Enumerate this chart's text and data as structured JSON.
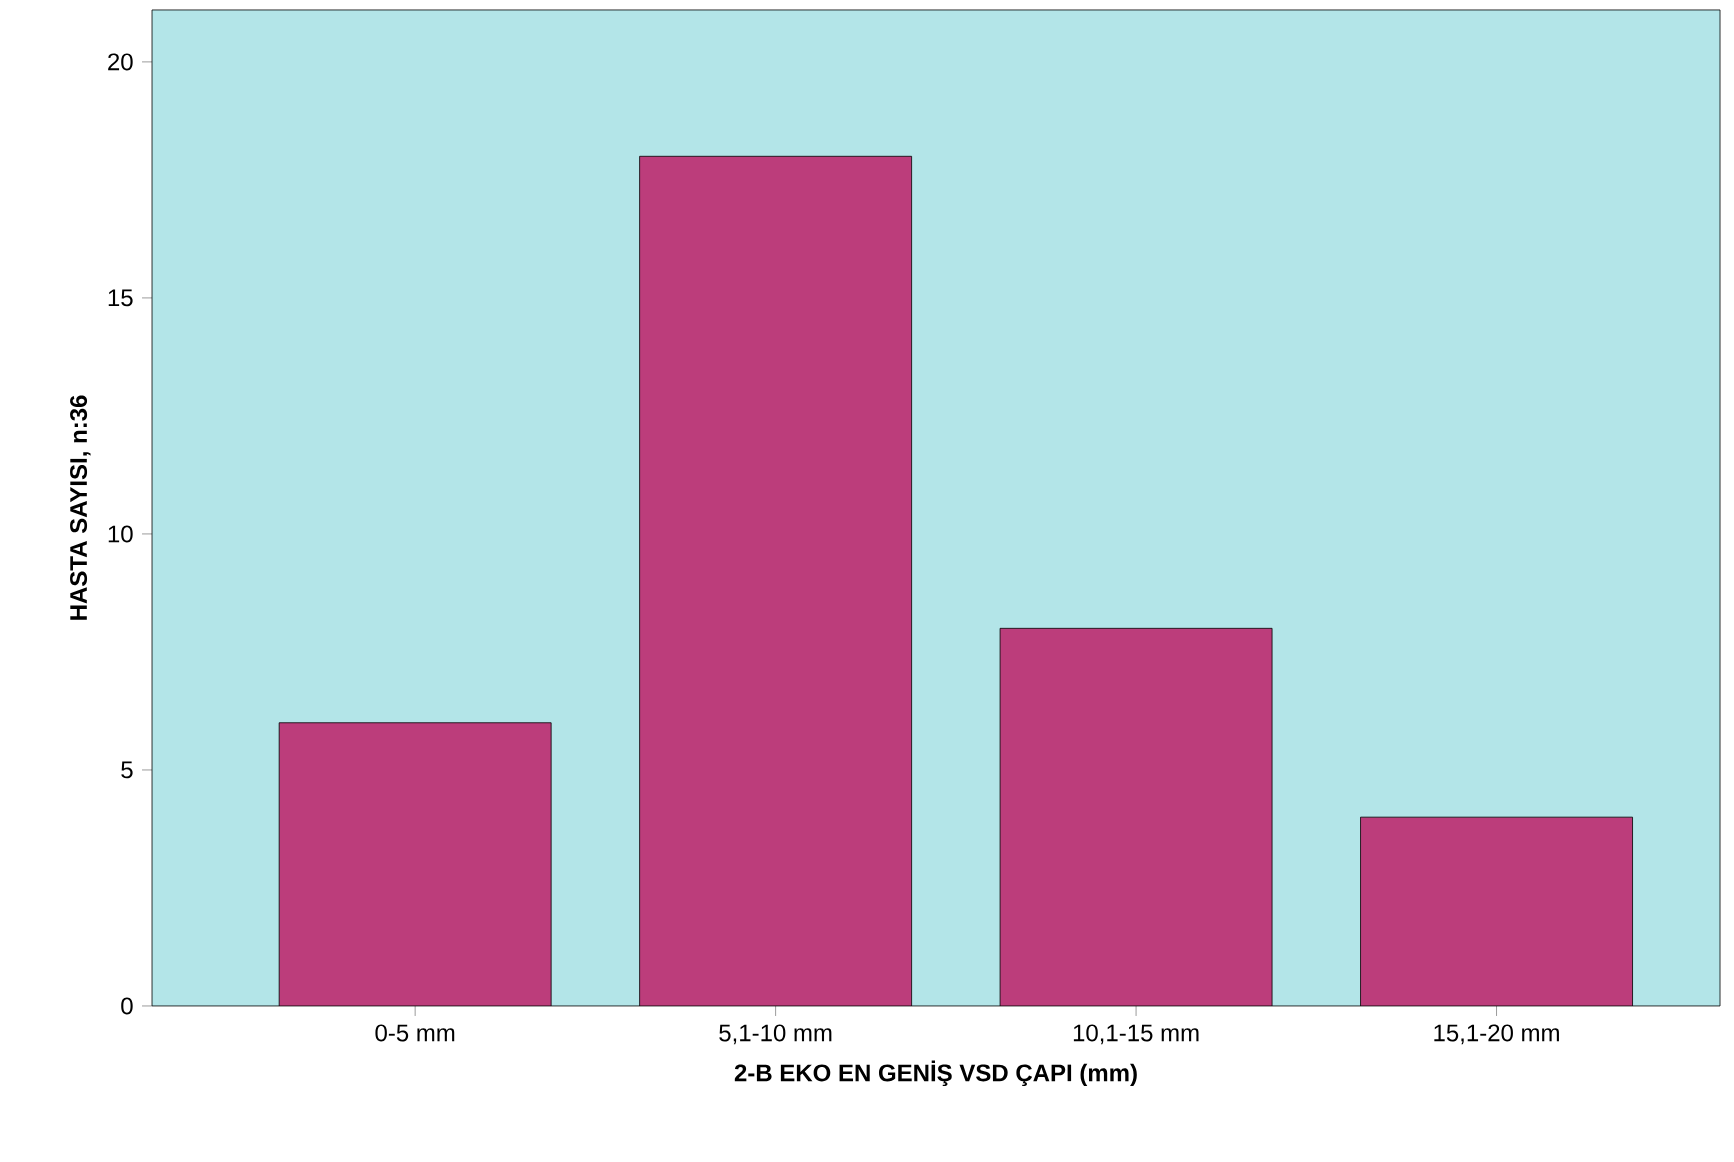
{
  "chart_data": {
    "type": "bar",
    "xlabel": "2-B EKO EN GENİŞ VSD ÇAPI (mm)",
    "ylabel": "HASTA SAYISI, n:36",
    "categories": [
      "0-5 mm",
      "5,1-10 mm",
      "10,1-15 mm",
      "15,1-20 mm"
    ],
    "values": [
      6,
      18,
      8,
      4
    ],
    "color": "#bc3d7b",
    "ylim": [
      0,
      21.1
    ],
    "yticks": [
      0,
      5,
      10,
      15,
      20
    ]
  }
}
